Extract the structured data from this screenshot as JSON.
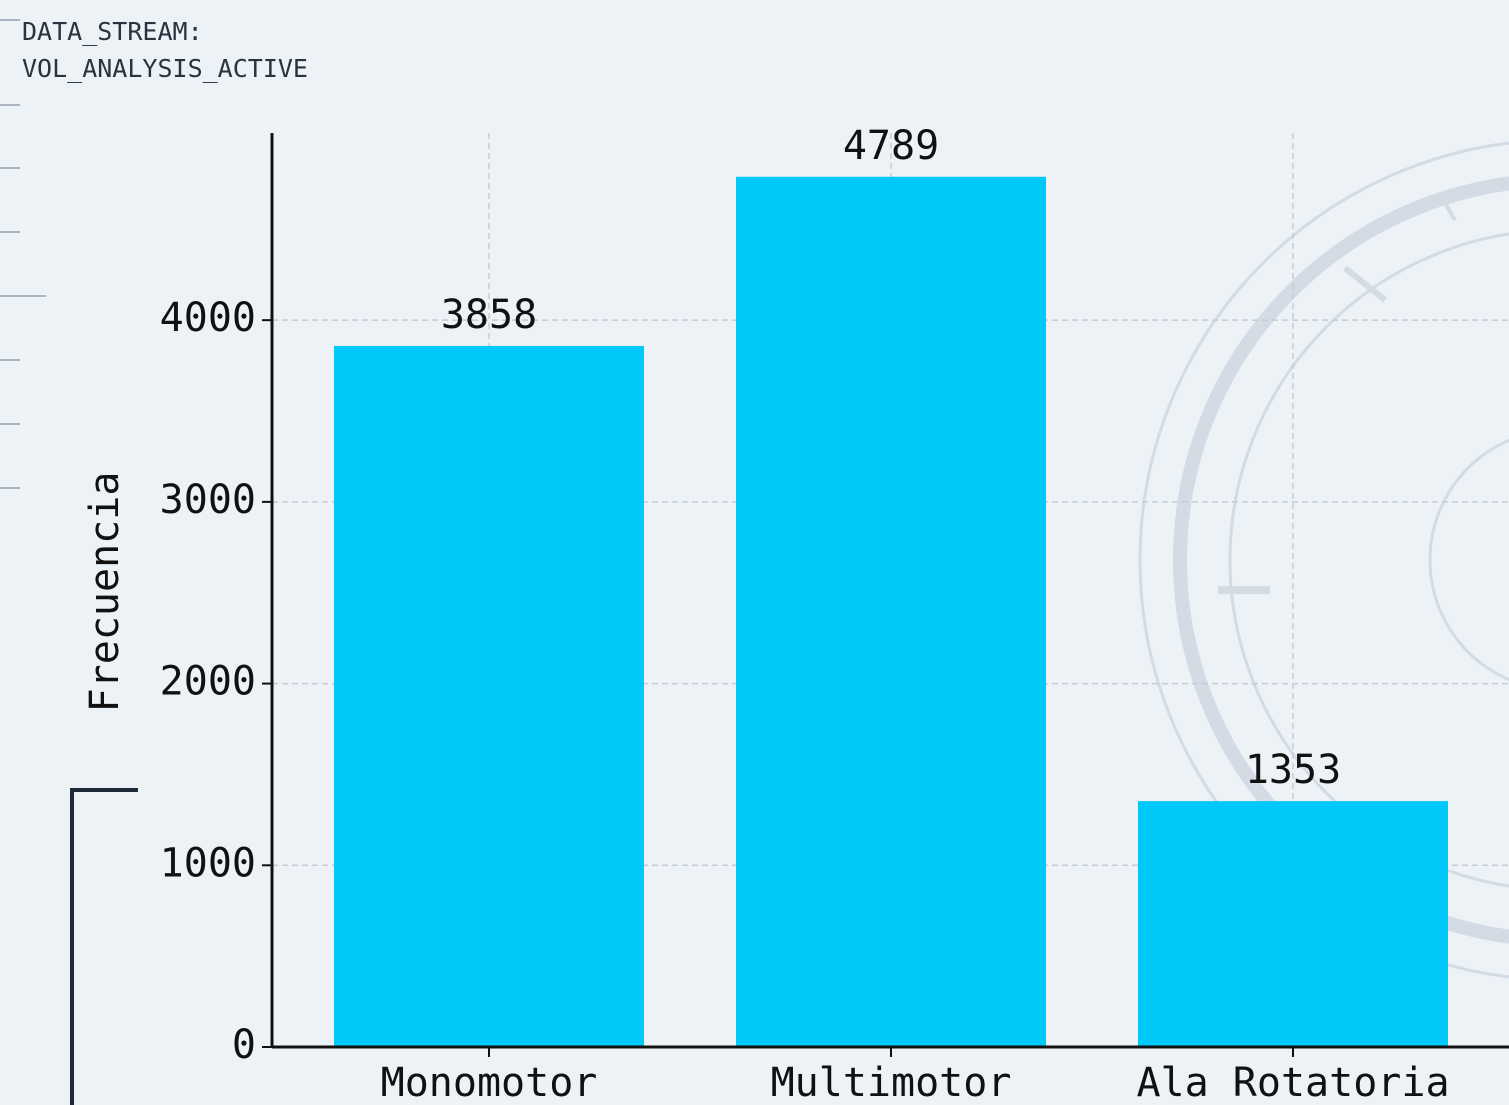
{
  "header": {
    "lines": [
      "DATA_STREAM:",
      "VOL_ANALYSIS_ACTIVE"
    ]
  },
  "chart_data": {
    "type": "bar",
    "ylabel": "Frecuencia",
    "categories": [
      "Monomotor",
      "Multimotor",
      "Ala Rotatoria"
    ],
    "values": [
      3858,
      4789,
      1353
    ],
    "color": "#00c8f8",
    "ylim": [
      0,
      5030
    ],
    "yticks": [
      0,
      1000,
      2000,
      3000,
      4000
    ],
    "grid": true
  }
}
